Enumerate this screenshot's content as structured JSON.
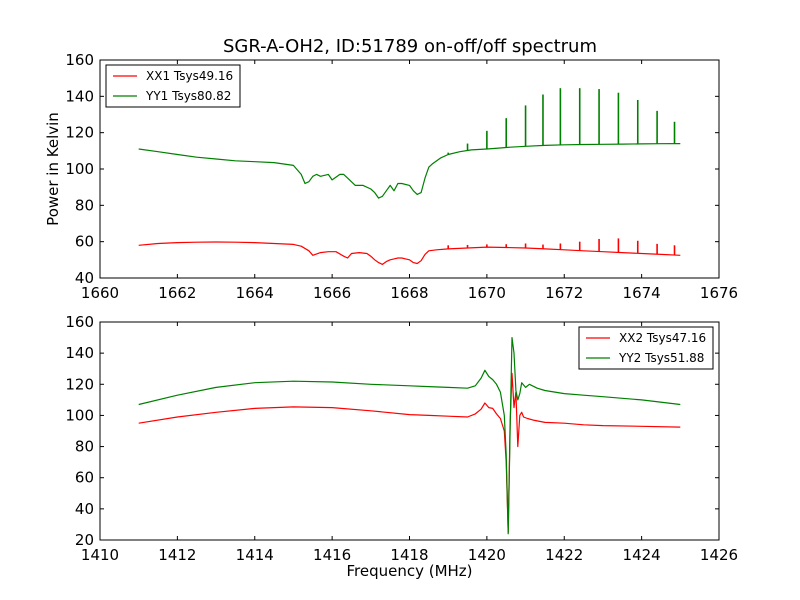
{
  "title": "SGR-A-OH2, ID:51789 on-off/off spectrum",
  "colors": {
    "xx": "#ff0000",
    "yy": "#008000"
  },
  "chart_data": [
    {
      "type": "line",
      "title": "SGR-A-OH2, ID:51789 on-off/off spectrum",
      "xlabel": "",
      "ylabel": "Power in Kelvin",
      "xlim": [
        1660,
        1676
      ],
      "ylim": [
        40,
        160
      ],
      "xticks": [
        "1660",
        "1662",
        "1664",
        "1666",
        "1668",
        "1670",
        "1672",
        "1674",
        "1676"
      ],
      "yticks": [
        "40",
        "60",
        "80",
        "100",
        "120",
        "140",
        "160"
      ],
      "legend": {
        "placement": "top-left",
        "entries": [
          "XX1 Tsys49.16",
          "YY1 Tsys80.82"
        ]
      },
      "grid": false,
      "series": [
        {
          "name": "XX1 Tsys49.16",
          "color": "#ff0000",
          "x": [
            1661.0,
            1661.5,
            1662.0,
            1662.5,
            1663.0,
            1663.5,
            1664.0,
            1664.5,
            1665.0,
            1665.2,
            1665.4,
            1665.5,
            1665.7,
            1665.9,
            1666.1,
            1666.3,
            1666.4,
            1666.5,
            1666.7,
            1666.9,
            1667.0,
            1667.1,
            1667.2,
            1667.3,
            1667.4,
            1667.5,
            1667.6,
            1667.7,
            1667.8,
            1667.9,
            1668.0,
            1668.1,
            1668.2,
            1668.3,
            1668.4,
            1668.5,
            1668.7,
            1669.0,
            1669.5,
            1670.0,
            1670.5,
            1671.0,
            1671.5,
            1672.0,
            1672.5,
            1673.0,
            1673.5,
            1674.0,
            1674.5,
            1675.0
          ],
          "y": [
            58,
            59,
            59.5,
            59.7,
            59.8,
            59.7,
            59.5,
            59,
            58.5,
            57.5,
            55,
            52.5,
            54,
            54.5,
            54.5,
            52,
            51,
            53.5,
            54,
            53.5,
            52,
            50,
            48.5,
            47.5,
            49,
            50,
            50.5,
            51,
            51,
            50.5,
            50,
            48.5,
            48,
            49.5,
            53,
            55,
            55.5,
            56,
            56.5,
            57,
            56.8,
            56.5,
            56,
            55.5,
            55,
            54.5,
            54,
            53.5,
            53,
            52.5
          ],
          "spikes": [
            [
              1669.0,
              58
            ],
            [
              1669.5,
              58.2
            ],
            [
              1670.0,
              58.5
            ],
            [
              1670.5,
              58.6
            ],
            [
              1671.0,
              59
            ],
            [
              1671.45,
              58.4
            ],
            [
              1671.9,
              59
            ],
            [
              1672.4,
              60
            ],
            [
              1672.9,
              61.5
            ],
            [
              1673.4,
              61.8
            ],
            [
              1673.9,
              60.5
            ],
            [
              1674.4,
              58.8
            ],
            [
              1674.85,
              58
            ]
          ]
        },
        {
          "name": "YY1 Tsys80.82",
          "color": "#008000",
          "x": [
            1661.0,
            1661.5,
            1662.0,
            1662.5,
            1663.0,
            1663.5,
            1664.0,
            1664.5,
            1665.0,
            1665.2,
            1665.3,
            1665.4,
            1665.5,
            1665.6,
            1665.7,
            1665.9,
            1666.0,
            1666.2,
            1666.3,
            1666.4,
            1666.6,
            1666.8,
            1667.0,
            1667.1,
            1667.2,
            1667.3,
            1667.4,
            1667.5,
            1667.6,
            1667.7,
            1667.8,
            1668.0,
            1668.1,
            1668.2,
            1668.3,
            1668.4,
            1668.5,
            1668.6,
            1668.8,
            1669.0,
            1669.3,
            1669.6,
            1670.0,
            1670.3,
            1670.6,
            1671.0,
            1671.5,
            1672.0,
            1672.5,
            1673.0,
            1673.5,
            1674.0,
            1674.5,
            1675.0
          ],
          "y": [
            111,
            109.5,
            108,
            106.5,
            105.5,
            104.5,
            104,
            103.5,
            102,
            97,
            92,
            93,
            96,
            97,
            96,
            97,
            94,
            97,
            97,
            95,
            91,
            91,
            89,
            87,
            84,
            85,
            88,
            91,
            88,
            92,
            92,
            91,
            88,
            86,
            87,
            95,
            101,
            103,
            106,
            108,
            109.5,
            110.5,
            111,
            111.5,
            112,
            112.5,
            113,
            113.3,
            113.5,
            113.6,
            113.7,
            113.8,
            113.9,
            114
          ],
          "spikes": [
            [
              1669.0,
              109
            ],
            [
              1669.5,
              114
            ],
            [
              1670.0,
              121
            ],
            [
              1670.5,
              128
            ],
            [
              1671.0,
              135
            ],
            [
              1671.45,
              141
            ],
            [
              1671.9,
              144.5
            ],
            [
              1672.4,
              144.5
            ],
            [
              1672.9,
              144
            ],
            [
              1673.4,
              142
            ],
            [
              1673.9,
              138
            ],
            [
              1674.4,
              132
            ],
            [
              1674.85,
              126
            ]
          ]
        }
      ]
    },
    {
      "type": "line",
      "title": "",
      "xlabel": "Frequency (MHz)",
      "ylabel": "",
      "xlim": [
        1410,
        1426
      ],
      "ylim": [
        20,
        160
      ],
      "xticks": [
        "1410",
        "1412",
        "1414",
        "1416",
        "1418",
        "1420",
        "1422",
        "1424",
        "1426"
      ],
      "yticks": [
        "20",
        "40",
        "60",
        "80",
        "100",
        "120",
        "140",
        "160"
      ],
      "legend": {
        "placement": "top-right",
        "entries": [
          "XX2 Tsys47.16",
          "YY2 Tsys51.88"
        ]
      },
      "grid": false,
      "series": [
        {
          "name": "XX2 Tsys47.16",
          "color": "#ff0000",
          "x": [
            1411.0,
            1412.0,
            1413.0,
            1414.0,
            1415.0,
            1416.0,
            1417.0,
            1418.0,
            1418.5,
            1419.0,
            1419.5,
            1419.7,
            1419.85,
            1419.95,
            1420.05,
            1420.15,
            1420.25,
            1420.35,
            1420.45,
            1420.5,
            1420.55,
            1420.6,
            1420.65,
            1420.7,
            1420.75,
            1420.8,
            1420.85,
            1420.9,
            1420.95,
            1421.05,
            1421.2,
            1421.5,
            1422.0,
            1422.5,
            1423.0,
            1424.0,
            1425.0
          ],
          "y": [
            95,
            99,
            102,
            104.5,
            105.5,
            105,
            103,
            100.5,
            100,
            99.5,
            99,
            101,
            104,
            108,
            105,
            104.5,
            101,
            98,
            90,
            70,
            25,
            95,
            127,
            105,
            115,
            80,
            100,
            102,
            99,
            98,
            97,
            95.5,
            95,
            94,
            93.5,
            93,
            92.5
          ]
        },
        {
          "name": "YY2 Tsys51.88",
          "color": "#008000",
          "x": [
            1411.0,
            1412.0,
            1413.0,
            1414.0,
            1415.0,
            1416.0,
            1417.0,
            1418.0,
            1418.5,
            1419.0,
            1419.5,
            1419.7,
            1419.85,
            1419.95,
            1420.05,
            1420.15,
            1420.25,
            1420.35,
            1420.45,
            1420.5,
            1420.55,
            1420.6,
            1420.65,
            1420.7,
            1420.75,
            1420.8,
            1420.85,
            1420.9,
            1421.0,
            1421.1,
            1421.3,
            1421.5,
            1422.0,
            1422.5,
            1423.0,
            1424.0,
            1425.0
          ],
          "y": [
            107,
            113,
            118,
            121,
            122,
            121.5,
            120,
            119,
            118.5,
            118,
            117.5,
            119,
            124,
            129,
            125,
            123,
            120,
            115,
            100,
            75,
            24,
            90,
            150,
            140,
            116,
            110,
            114,
            121,
            118,
            120,
            117.5,
            116,
            114,
            113,
            112,
            110,
            107
          ]
        }
      ]
    }
  ]
}
